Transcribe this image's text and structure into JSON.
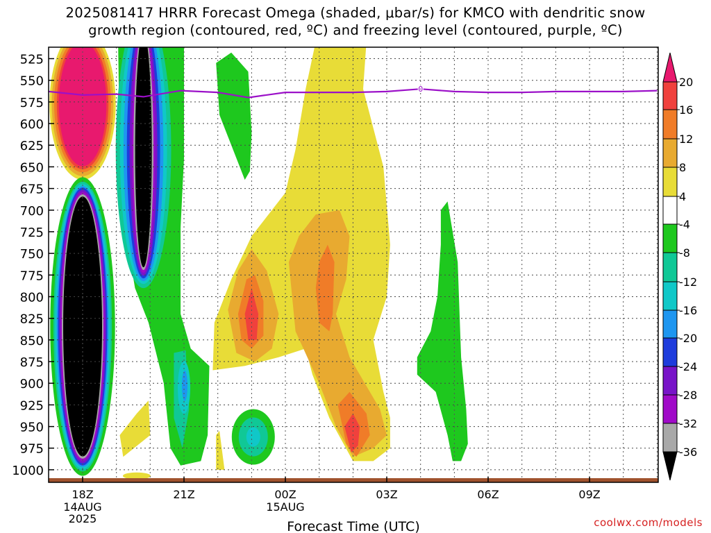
{
  "title_line1": "2025081417 HRRR Forecast Omega (shaded, μbar/s) for KMCO with dendritic snow",
  "title_line2": "growth region (contoured, red, ºC) and freezing level (contoured, purple, ºC)",
  "watermark": "coolwx.com/models",
  "colors": {
    "background": "#ffffff",
    "freezing_level": "#9b10c8",
    "ground": "#a0522d"
  },
  "chart_data": {
    "type": "heatmap",
    "title": "2025081417 HRRR Forecast Omega (shaded, μbar/s) for KMCO with dendritic snow growth region (contoured, red, ºC) and freezing level (contoured, purple, ºC)",
    "xlabel": "Forecast Time (UTC)",
    "ylabel": "",
    "x_ticks": [
      {
        "hour": 18,
        "label": "18Z",
        "date": "14AUG",
        "year": "2025"
      },
      {
        "hour": 21,
        "label": "21Z",
        "date": "",
        "year": ""
      },
      {
        "hour": 24,
        "label": "00Z",
        "date": "15AUG",
        "year": ""
      },
      {
        "hour": 27,
        "label": "03Z",
        "date": "",
        "year": ""
      },
      {
        "hour": 30,
        "label": "06Z",
        "date": "",
        "year": ""
      },
      {
        "hour": 33,
        "label": "09Z",
        "date": "",
        "year": ""
      }
    ],
    "xlim": [
      17,
      35
    ],
    "y_ticks": [
      525,
      550,
      575,
      600,
      625,
      650,
      675,
      700,
      725,
      750,
      775,
      800,
      825,
      850,
      875,
      900,
      925,
      950,
      975,
      1000
    ],
    "ylim": [
      510,
      1010
    ],
    "y_axis_inverted": true,
    "grid": true,
    "colorbar": {
      "labels": [
        20,
        16,
        12,
        8,
        4,
        -4,
        -8,
        -12,
        -16,
        -20,
        -24,
        -28,
        -32,
        -36
      ],
      "colors": [
        "#e8196e",
        "#f0413d",
        "#f07c28",
        "#e8aa30",
        "#e8dc37",
        "#ffffff",
        "#1ec81e",
        "#10c896",
        "#10c8c8",
        "#1e96f0",
        "#1e3cdc",
        "#7814c8",
        "#a00ac8",
        "#a8a8a8",
        "#000000"
      ],
      "placement": "right"
    },
    "freezing_level_0C": {
      "hours": [
        17,
        18,
        19,
        19.8,
        20.9,
        22,
        22.9,
        24,
        25,
        26,
        27,
        28,
        29,
        30,
        31,
        32,
        33,
        34,
        35
      ],
      "pressure_mb": [
        563,
        567,
        566,
        569,
        562,
        564,
        570,
        564,
        564,
        564,
        563,
        560,
        563,
        564,
        564,
        563,
        563,
        563,
        562
      ],
      "label": "0"
    },
    "omega_features": [
      {
        "kind": "ellipse",
        "hour_center": 18.0,
        "hour_halfwidth": 0.85,
        "p_top": 665,
        "p_bottom": 1005,
        "peak_value": -36
      },
      {
        "kind": "ellipse",
        "hour_center": 19.8,
        "hour_halfwidth": 0.9,
        "p_top": 505,
        "p_bottom": 775,
        "peak_value": -36
      },
      {
        "kind": "ellipse",
        "hour_center": 18.0,
        "hour_halfwidth": 0.85,
        "p_top": 505,
        "p_bottom": 650,
        "peak_value": 20
      },
      {
        "kind": "region",
        "hour_center": 20.9,
        "p_top": 860,
        "p_bottom": 985,
        "peak_value": -16
      },
      {
        "kind": "region",
        "hour_center": 22.0,
        "p_top": 540,
        "p_bottom": 660,
        "peak_value": -8
      },
      {
        "kind": "region",
        "hour_center": 23.0,
        "p_top": 940,
        "p_bottom": 990,
        "peak_value": -12
      },
      {
        "kind": "region",
        "hour_center": 23.0,
        "p_top": 760,
        "p_bottom": 865,
        "peak_value": 16
      },
      {
        "kind": "region",
        "hour_center": 25.2,
        "p_top": 505,
        "p_bottom": 990,
        "peak_value": 12
      },
      {
        "kind": "region",
        "hour_center": 26.0,
        "p_top": 935,
        "p_bottom": 970,
        "peak_value": 16
      },
      {
        "kind": "region",
        "hour_center": 27.8,
        "p_top": 690,
        "p_bottom": 985,
        "peak_value": -8
      }
    ]
  }
}
